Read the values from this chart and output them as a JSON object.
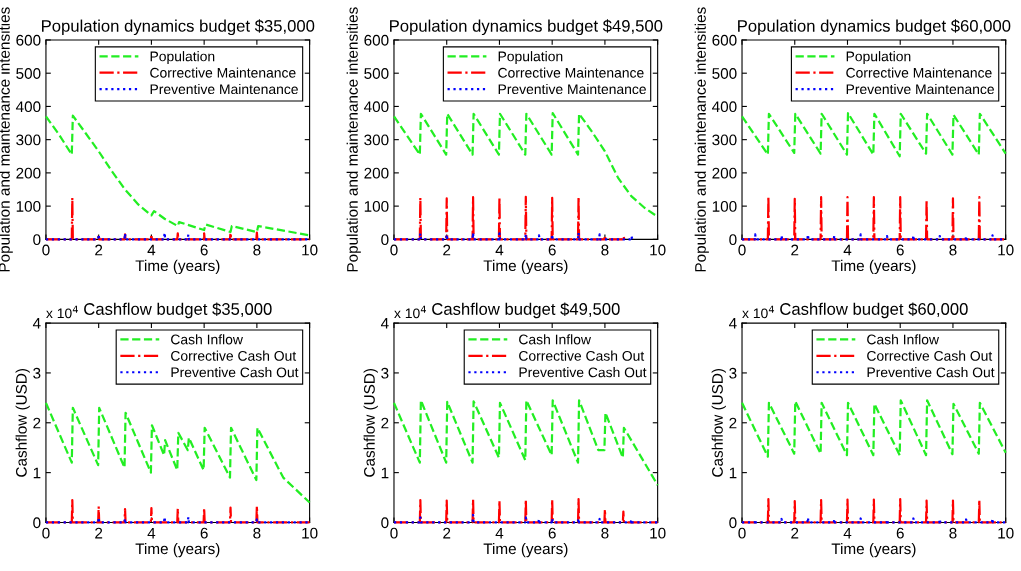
{
  "chart_data": [
    {
      "type": "line",
      "title": "Population dynamics budget $35,000",
      "xlabel": "Time (years)",
      "ylabel": "Population and maintenance intensities",
      "xlim": [
        0,
        10
      ],
      "xticks": [
        0,
        2,
        4,
        6,
        8,
        10
      ],
      "ylim": [
        0,
        600
      ],
      "yticks": [
        0,
        100,
        200,
        300,
        400,
        500,
        600
      ],
      "grid": false,
      "legend": "top right",
      "series": [
        {
          "name": "Population",
          "color": "#22ee22",
          "line_style": "dashed",
          "x": [
            0,
            0.5,
            0.98,
            1.02,
            1.5,
            2,
            2.5,
            3,
            3.5,
            4,
            4.1,
            4.5,
            5,
            5.05,
            6,
            6.05,
            7,
            7.05,
            8,
            8.05,
            10
          ],
          "values": [
            370,
            315,
            255,
            372,
            320,
            265,
            205,
            150,
            105,
            72,
            85,
            62,
            40,
            52,
            28,
            45,
            22,
            40,
            22,
            40,
            12
          ]
        },
        {
          "name": "Corrective Maintenance",
          "color": "#ff0000",
          "line_style": "dashdot",
          "x": [
            0,
            0.98,
            1,
            1.02,
            1.98,
            2,
            2.02,
            2.98,
            3,
            3.02,
            3.98,
            4,
            4.02,
            4.98,
            5,
            5.02,
            5.98,
            6,
            6.02,
            6.98,
            7,
            7.02,
            7.98,
            8,
            8.02,
            10
          ],
          "values": [
            0,
            0,
            125,
            0,
            0,
            15,
            0,
            0,
            15,
            0,
            0,
            15,
            0,
            0,
            18,
            0,
            0,
            18,
            0,
            0,
            20,
            0,
            0,
            20,
            0,
            0
          ]
        },
        {
          "name": "Preventive Maintenance",
          "color": "#0000ff",
          "line_style": "dotted",
          "x": [
            0,
            1.98,
            2,
            2.02,
            2.98,
            3,
            3.02,
            4.48,
            4.5,
            4.52,
            5.38,
            5.4,
            5.42,
            10
          ],
          "values": [
            0,
            0,
            15,
            0,
            0,
            18,
            0,
            0,
            20,
            0,
            0,
            15,
            0,
            0
          ]
        }
      ]
    },
    {
      "type": "line",
      "title": "Population dynamics budget $49,500",
      "xlabel": "Time (years)",
      "ylabel": "Population and maintenance intensities",
      "xlim": [
        0,
        10
      ],
      "xticks": [
        0,
        2,
        4,
        6,
        8,
        10
      ],
      "ylim": [
        0,
        600
      ],
      "yticks": [
        0,
        100,
        200,
        300,
        400,
        500,
        600
      ],
      "grid": false,
      "legend": "top right",
      "series": [
        {
          "name": "Population",
          "color": "#22ee22",
          "line_style": "dashed",
          "x": [
            0,
            0.98,
            1.02,
            1.98,
            2.02,
            2.98,
            3.02,
            3.98,
            4.02,
            4.98,
            5.02,
            5.98,
            6.02,
            6.98,
            7.02,
            7.5,
            8,
            8.5,
            9,
            9.5,
            10
          ],
          "values": [
            370,
            255,
            378,
            255,
            378,
            255,
            378,
            255,
            378,
            255,
            378,
            255,
            380,
            255,
            378,
            325,
            265,
            185,
            130,
            95,
            68
          ]
        },
        {
          "name": "Corrective Maintenance",
          "color": "#ff0000",
          "line_style": "dashdot",
          "x": [
            0,
            0.98,
            1,
            1.02,
            1.98,
            2,
            2.02,
            2.98,
            3,
            3.02,
            3.98,
            4,
            4.02,
            4.98,
            5,
            5.02,
            5.98,
            6,
            6.02,
            6.98,
            7,
            7.02,
            7.98,
            8,
            8.02,
            8.66,
            8.7,
            8.74
          ],
          "values": [
            0,
            0,
            125,
            0,
            0,
            123,
            0,
            0,
            127,
            0,
            0,
            127,
            0,
            0,
            128,
            0,
            0,
            125,
            0,
            0,
            127,
            0,
            0,
            12,
            0,
            0,
            10,
            0
          ]
        },
        {
          "name": "Preventive Maintenance",
          "color": "#0000ff",
          "line_style": "dotted",
          "x": [
            0,
            0.98,
            1,
            1.02,
            1.98,
            2,
            2.02,
            2.98,
            3,
            3.02,
            3.98,
            4,
            4.02,
            4.98,
            5,
            5.02,
            5.48,
            5.5,
            5.52,
            5.98,
            6,
            6.02,
            6.98,
            7,
            7.02,
            7.78,
            7.8,
            7.82,
            8.96,
            9,
            9.04
          ],
          "values": [
            0,
            0,
            18,
            0,
            0,
            15,
            0,
            0,
            20,
            0,
            0,
            18,
            0,
            0,
            15,
            0,
            0,
            12,
            0,
            0,
            15,
            0,
            0,
            20,
            0,
            0,
            15,
            0,
            0,
            10,
            0
          ]
        }
      ]
    },
    {
      "type": "line",
      "title": "Population dynamics budget $60,000",
      "xlabel": "Time (years)",
      "ylabel": "Population and maintenance intensities",
      "xlim": [
        0,
        10
      ],
      "xticks": [
        0,
        2,
        4,
        6,
        8,
        10
      ],
      "ylim": [
        0,
        600
      ],
      "yticks": [
        0,
        100,
        200,
        300,
        400,
        500,
        600
      ],
      "grid": false,
      "legend": "top right",
      "series": [
        {
          "name": "Population",
          "color": "#22ee22",
          "line_style": "dashed",
          "x": [
            0,
            0.98,
            1.02,
            1.98,
            2.02,
            2.98,
            3.02,
            3.98,
            4.02,
            4.98,
            5.02,
            5.98,
            6.02,
            6.98,
            7.02,
            7.98,
            8.02,
            8.98,
            9.02,
            10
          ],
          "values": [
            370,
            255,
            378,
            260,
            378,
            258,
            378,
            255,
            380,
            255,
            378,
            250,
            378,
            258,
            378,
            255,
            375,
            255,
            378,
            258
          ]
        },
        {
          "name": "Corrective Maintenance",
          "color": "#ff0000",
          "line_style": "dashdot",
          "x": [
            0,
            0.98,
            1,
            1.02,
            1.98,
            2,
            2.02,
            2.98,
            3,
            3.02,
            3.98,
            4,
            4.02,
            4.98,
            5,
            5.02,
            5.98,
            6,
            6.02,
            6.98,
            7,
            7.02,
            7.98,
            8,
            8.02,
            8.98,
            9,
            9.02,
            10
          ],
          "values": [
            0,
            0,
            130,
            0,
            0,
            122,
            0,
            0,
            127,
            0,
            0,
            127,
            0,
            0,
            127,
            0,
            0,
            127,
            0,
            0,
            120,
            0,
            0,
            123,
            0,
            0,
            127,
            0,
            0
          ]
        },
        {
          "name": "Preventive Maintenance",
          "color": "#0000ff",
          "line_style": "dotted",
          "x": [
            0,
            0.48,
            0.5,
            0.52,
            1.48,
            1.5,
            1.52,
            2.48,
            2.5,
            2.52,
            3.48,
            3.5,
            3.52,
            4.48,
            4.5,
            4.52,
            5.48,
            5.5,
            5.52,
            6.48,
            6.5,
            6.52,
            7.48,
            7.5,
            7.52,
            8.48,
            8.5,
            8.52,
            9.48,
            9.5,
            9.52,
            10
          ],
          "values": [
            0,
            0,
            15,
            0,
            0,
            12,
            0,
            0,
            15,
            0,
            0,
            12,
            0,
            0,
            15,
            0,
            0,
            10,
            0,
            0,
            12,
            0,
            0,
            10,
            0,
            0,
            10,
            0,
            0,
            12,
            0,
            0
          ]
        }
      ]
    },
    {
      "type": "line",
      "title": "Cashflow budget $35,000",
      "xlabel": "Time (years)",
      "ylabel": "Cashflow (USD)",
      "annotations": [
        "x 10$^{4}$"
      ],
      "xlim": [
        0,
        10
      ],
      "xticks": [
        0,
        2,
        4,
        6,
        8,
        10
      ],
      "ylim": [
        0,
        4
      ],
      "yticks": [
        0,
        1,
        2,
        3,
        4
      ],
      "grid": false,
      "legend": "top right",
      "series": [
        {
          "name": "Cash Inflow",
          "color": "#22ee22",
          "line_style": "dashed",
          "x": [
            0,
            0.98,
            1.02,
            1.98,
            2.02,
            2.98,
            3.02,
            3.5,
            3.98,
            4.02,
            4.48,
            4.52,
            4.98,
            5.02,
            5.38,
            5.42,
            5.98,
            6.02,
            6.5,
            6.98,
            7.02,
            7.98,
            8.02,
            9,
            10
          ],
          "values": [
            2.4,
            1.2,
            2.3,
            1.15,
            2.3,
            1.1,
            2.2,
            1.6,
            1.0,
            1.95,
            1.35,
            1.65,
            1.05,
            1.8,
            1.45,
            1.7,
            1.05,
            1.9,
            1.4,
            0.9,
            1.9,
            0.85,
            1.9,
            0.9,
            0.4
          ]
        },
        {
          "name": "Corrective Cash Out",
          "color": "#ff0000",
          "line_style": "dashdot",
          "x": [
            0,
            0.98,
            1,
            1.02,
            1.98,
            2,
            2.02,
            2.98,
            3,
            3.02,
            3.98,
            4,
            4.02,
            4.98,
            5,
            5.02,
            5.98,
            6,
            6.02,
            6.98,
            7,
            7.02,
            7.98,
            8,
            8.02,
            10
          ],
          "values": [
            0,
            0,
            0.45,
            0,
            0,
            0.32,
            0,
            0,
            0.27,
            0,
            0,
            0.29,
            0,
            0,
            0.28,
            0,
            0,
            0.29,
            0,
            0,
            0.3,
            0,
            0,
            0.33,
            0,
            0
          ]
        },
        {
          "name": "Preventive Cash Out",
          "color": "#0000ff",
          "line_style": "dotted",
          "x": [
            0,
            1.98,
            2,
            2.02,
            2.98,
            3,
            3.02,
            4.48,
            4.5,
            4.52,
            5.38,
            5.4,
            5.42,
            7.98,
            8,
            8.02,
            10
          ],
          "values": [
            0,
            0,
            0.1,
            0,
            0,
            0.08,
            0,
            0,
            0.11,
            0,
            0,
            0.11,
            0,
            0,
            0.06,
            0,
            0
          ]
        }
      ]
    },
    {
      "type": "line",
      "title": "Cashflow budget $49,500",
      "xlabel": "Time (years)",
      "ylabel": "Cashflow (USD)",
      "annotations": [
        "x 10$^{4}$"
      ],
      "xlim": [
        0,
        10
      ],
      "xticks": [
        0,
        2,
        4,
        6,
        8,
        10
      ],
      "ylim": [
        0,
        4
      ],
      "yticks": [
        0,
        1,
        2,
        3,
        4
      ],
      "grid": false,
      "legend": "top right",
      "series": [
        {
          "name": "Cash Inflow",
          "color": "#22ee22",
          "line_style": "dashed",
          "x": [
            0,
            0.98,
            1.02,
            1.98,
            2.02,
            2.98,
            3.02,
            3.98,
            4.02,
            4.98,
            5.02,
            5.98,
            6.02,
            6.98,
            7.02,
            7.75,
            7.98,
            8.02,
            8.68,
            8.72,
            10
          ],
          "values": [
            2.4,
            1.2,
            2.45,
            1.2,
            2.42,
            1.2,
            2.43,
            1.3,
            2.4,
            1.25,
            2.45,
            1.35,
            2.45,
            1.2,
            2.45,
            1.45,
            1.45,
            2.2,
            1.3,
            1.9,
            0.75
          ]
        },
        {
          "name": "Corrective Cash Out",
          "color": "#ff0000",
          "line_style": "dashdot",
          "x": [
            0,
            0.98,
            1,
            1.02,
            1.98,
            2,
            2.02,
            2.98,
            3,
            3.02,
            3.98,
            4,
            4.02,
            4.98,
            5,
            5.02,
            5.98,
            6,
            6.02,
            6.98,
            7,
            7.02,
            7.98,
            8,
            8.02,
            8.68,
            8.7,
            8.72,
            10
          ],
          "values": [
            0,
            0,
            0.45,
            0,
            0,
            0.44,
            0,
            0,
            0.46,
            0,
            0,
            0.44,
            0,
            0,
            0.46,
            0,
            0,
            0.46,
            0,
            0,
            0.47,
            0,
            0,
            0.26,
            0,
            0,
            0.22,
            0,
            0
          ]
        },
        {
          "name": "Preventive Cash Out",
          "color": "#0000ff",
          "line_style": "dotted",
          "x": [
            0,
            0.98,
            1,
            1.02,
            2.98,
            3,
            3.02,
            4.98,
            5,
            5.02,
            5.48,
            5.5,
            5.52,
            5.98,
            6,
            6.02,
            6.98,
            7,
            7.02,
            7.78,
            7.8,
            7.82,
            8.98,
            9,
            9.02,
            10
          ],
          "values": [
            0,
            0,
            0.1,
            0,
            0,
            0.15,
            0,
            0,
            0.1,
            0,
            0,
            0.07,
            0,
            0,
            0.08,
            0,
            0,
            0.08,
            0,
            0,
            0.07,
            0,
            0,
            0.06,
            0,
            0
          ]
        }
      ]
    },
    {
      "type": "line",
      "title": "Cashflow budget $60,000",
      "xlabel": "Time (years)",
      "ylabel": "Cashflow (USD)",
      "annotations": [
        "x 10$^{4}$"
      ],
      "xlim": [
        0,
        10
      ],
      "xticks": [
        0,
        2,
        4,
        6,
        8,
        10
      ],
      "ylim": [
        0,
        4
      ],
      "yticks": [
        0,
        1,
        2,
        3,
        4
      ],
      "grid": false,
      "legend": "top right",
      "series": [
        {
          "name": "Cash Inflow",
          "color": "#22ee22",
          "line_style": "dashed",
          "x": [
            0,
            0.98,
            1.02,
            1.98,
            2.02,
            2.98,
            3.02,
            3.98,
            4.02,
            4.98,
            5.02,
            5.98,
            6.02,
            6.98,
            7.02,
            7.98,
            8.02,
            8.98,
            9.02,
            10
          ],
          "values": [
            2.4,
            1.32,
            2.4,
            1.38,
            2.43,
            1.38,
            2.4,
            1.35,
            2.4,
            1.35,
            2.38,
            1.35,
            2.45,
            1.35,
            2.45,
            1.37,
            2.38,
            1.38,
            2.4,
            1.4
          ]
        },
        {
          "name": "Corrective Cash Out",
          "color": "#ff0000",
          "line_style": "dashdot",
          "x": [
            0,
            0.98,
            1,
            1.02,
            1.98,
            2,
            2.02,
            2.98,
            3,
            3.02,
            3.98,
            4,
            4.02,
            4.98,
            5,
            5.02,
            5.98,
            6,
            6.02,
            6.98,
            7,
            7.02,
            7.98,
            8,
            8.02,
            8.98,
            9,
            9.02,
            10
          ],
          "values": [
            0,
            0,
            0.47,
            0,
            0,
            0.43,
            0,
            0,
            0.45,
            0,
            0,
            0.46,
            0,
            0,
            0.46,
            0,
            0,
            0.47,
            0,
            0,
            0.44,
            0,
            0,
            0.44,
            0,
            0,
            0.45,
            0,
            0
          ]
        },
        {
          "name": "Preventive Cash Out",
          "color": "#0000ff",
          "line_style": "dotted",
          "x": [
            0,
            0.48,
            0.5,
            0.52,
            1.48,
            1.5,
            1.52,
            2.48,
            2.5,
            2.52,
            3.48,
            3.5,
            3.52,
            4.48,
            4.5,
            4.52,
            5.48,
            5.5,
            5.52,
            6.48,
            6.5,
            6.52,
            7.48,
            7.5,
            7.52,
            8.48,
            8.5,
            8.52,
            9.48,
            9.5,
            9.52,
            10
          ],
          "values": [
            0,
            0,
            0.06,
            0,
            0,
            0.07,
            0,
            0,
            0.1,
            0,
            0,
            0.07,
            0,
            0,
            0.08,
            0,
            0,
            0.06,
            0,
            0,
            0.08,
            0,
            0,
            0.07,
            0,
            0,
            0.06,
            0,
            0,
            0.08,
            0,
            0
          ]
        }
      ]
    }
  ]
}
